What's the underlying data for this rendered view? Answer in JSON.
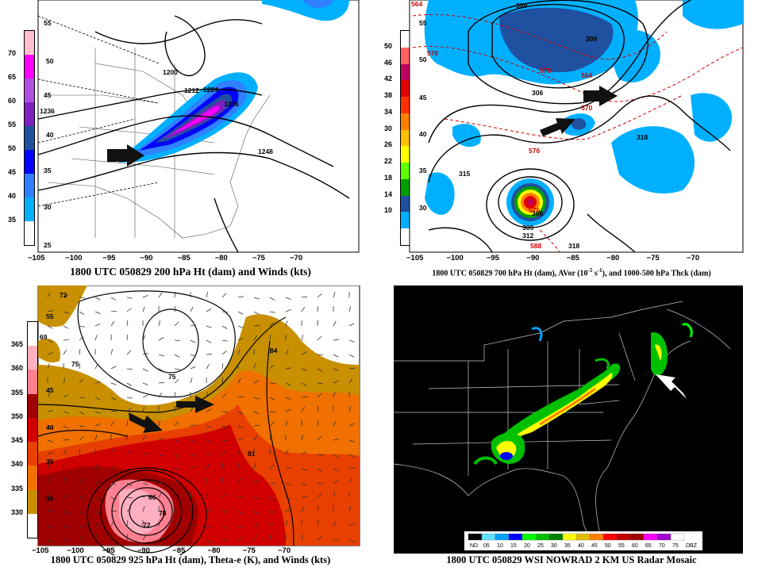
{
  "panels": {
    "p200": {
      "caption": "1800 UTC 050829 200 hPa Ht (dam) and Winds (kts)",
      "colorbar": [
        "70",
        "65",
        "60",
        "55",
        "50",
        "45",
        "40",
        "35"
      ],
      "colorbar_colors": [
        "#ffc0d0",
        "#ff00ff",
        "#b050e0",
        "#8020c0",
        "#2050a0",
        "#0000ff",
        "#3080ff",
        "#00b0ff"
      ],
      "contour_labels": [
        "1200",
        "1212",
        "1224",
        "1236",
        "1236",
        "1248"
      ],
      "wind_labels": [
        "55",
        "50",
        "45",
        "40",
        "35",
        "30",
        "25"
      ],
      "x_ticks": [
        "−105",
        "−100",
        "−95",
        "−90",
        "−85",
        "−80",
        "−75",
        "−70"
      ]
    },
    "p700": {
      "caption_main": "1800 UTC 050829 700 hPa Ht (dam), AVor (10",
      "caption_sup1": "-5",
      "caption_mid": " s",
      "caption_sup2": "-1",
      "caption_end": "), and 1000-500 hPa Thck (dam)",
      "colorbar": [
        "50",
        "46",
        "42",
        "38",
        "34",
        "30",
        "26",
        "22",
        "18",
        "14",
        "10"
      ],
      "colorbar_colors": [
        "#ffffff",
        "#ff6060",
        "#c00060",
        "#e00000",
        "#ff3000",
        "#ff8000",
        "#ffc000",
        "#ffff00",
        "#60ff00",
        "#00a000",
        "#2050a0",
        "#00b0ff"
      ],
      "contour_labels": [
        "309",
        "306",
        "309",
        "315",
        "318",
        "309",
        "312",
        "318",
        "306"
      ],
      "thickness_labels": [
        "564",
        "576",
        "576",
        "564",
        "570",
        "576",
        "576",
        "588"
      ],
      "lat_labels": [
        "55",
        "50",
        "45",
        "40",
        "35",
        "30"
      ],
      "x_ticks": [
        "−105",
        "−100",
        "−95",
        "−90",
        "−85",
        "−80",
        "−75",
        "−70"
      ]
    },
    "p925": {
      "caption": "1800 UTC 050829 925 hPa Ht (dam), Theta-e (K), and Winds (kts)",
      "colorbar": [
        "365",
        "360",
        "355",
        "350",
        "345",
        "340",
        "335",
        "330"
      ],
      "colorbar_colors": [
        "#ffffff",
        "#ffb0c0",
        "#ff8090",
        "#a00000",
        "#d00000",
        "#e84000",
        "#f07000",
        "#c89000"
      ],
      "contour_labels": [
        "72",
        "69",
        "75",
        "75",
        "81",
        "66",
        "84",
        "78",
        "72"
      ],
      "lat_labels": [
        "55",
        "45",
        "40",
        "35",
        "30"
      ],
      "x_ticks": [
        "−105",
        "−100",
        "−95",
        "−90",
        "−85",
        "−80",
        "−75",
        "−70"
      ]
    },
    "radar": {
      "caption": "1800 UTC 050829 WSI NOWRAD 2 KM US Radar Mosaic",
      "legend": [
        "ND",
        "05",
        "10",
        "15",
        "20",
        "25",
        "30",
        "35",
        "40",
        "45",
        "50",
        "55",
        "60",
        "65",
        "70",
        "75",
        "DBZ"
      ],
      "legend_colors": [
        "#000000",
        "#60e0ff",
        "#00a0ff",
        "#0000ff",
        "#00ff00",
        "#00c000",
        "#008000",
        "#ffff00",
        "#e0c000",
        "#ff8000",
        "#ff0000",
        "#c00000",
        "#a00000",
        "#ff00ff",
        "#a000d0",
        "#ffffff"
      ]
    }
  }
}
